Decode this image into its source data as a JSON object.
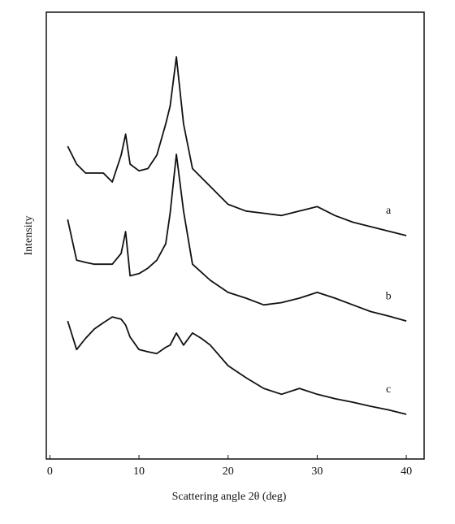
{
  "chart_data": {
    "type": "line",
    "x_label": "Scattering angle 2θ (deg)",
    "y_label": "Intensity",
    "x": [
      2,
      3,
      4,
      5,
      6,
      7,
      8,
      8.5,
      9,
      10,
      11,
      12,
      13,
      13.5,
      14.2,
      15,
      16,
      17,
      18,
      20,
      22,
      24,
      26,
      28,
      30,
      32,
      34,
      36,
      38,
      40
    ],
    "series": [
      {
        "name": "a",
        "color": "#111111",
        "values": [
          70,
          66,
          64,
          64,
          64,
          62,
          68,
          72.7,
          66,
          64.5,
          65,
          68,
          75,
          79,
          90,
          75,
          65,
          63,
          61,
          57,
          55.5,
          55,
          54.5,
          55.5,
          56.5,
          54.5,
          53,
          52,
          51,
          50
        ]
      },
      {
        "name": "b",
        "color": "#111111",
        "values": [
          53.6,
          44.5,
          44,
          43.6,
          43.6,
          43.6,
          46,
          50.9,
          41,
          41.5,
          42.7,
          44.5,
          48.2,
          55,
          68.2,
          55.5,
          43.6,
          41.8,
          40,
          37.3,
          36,
          34.5,
          35,
          36,
          37.3,
          36,
          34.5,
          33,
          32,
          30.9
        ]
      },
      {
        "name": "c",
        "color": "#111111",
        "values": [
          30.9,
          24.5,
          27,
          29.1,
          30.5,
          31.8,
          31.3,
          30,
          27.3,
          24.5,
          24,
          23.6,
          25,
          25.5,
          28.2,
          25.5,
          28.2,
          27,
          25.5,
          20.9,
          18.2,
          15.8,
          14.5,
          15.8,
          14.5,
          13.5,
          12.7,
          11.8,
          11,
          10
        ]
      }
    ],
    "xlim": [
      -0.4,
      42
    ],
    "xticks": [
      0,
      10,
      20,
      30,
      40
    ],
    "ylim": [
      0,
      100
    ]
  }
}
